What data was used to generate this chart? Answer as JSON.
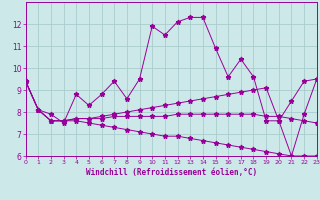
{
  "xlabel": "Windchill (Refroidissement éolien,°C)",
  "x": [
    0,
    1,
    2,
    3,
    4,
    5,
    6,
    7,
    8,
    9,
    10,
    11,
    12,
    13,
    14,
    15,
    16,
    17,
    18,
    19,
    20,
    21,
    22,
    23
  ],
  "line1": [
    9.4,
    8.1,
    7.9,
    7.5,
    8.8,
    8.3,
    8.8,
    9.4,
    8.6,
    9.5,
    11.9,
    11.5,
    12.1,
    12.3,
    12.3,
    10.9,
    9.6,
    10.4,
    9.6,
    7.6,
    7.6,
    6.0,
    7.9,
    9.5
  ],
  "line2": [
    9.4,
    8.1,
    7.6,
    7.6,
    7.7,
    7.7,
    7.8,
    7.9,
    8.0,
    8.1,
    8.2,
    8.3,
    8.4,
    8.5,
    8.6,
    8.7,
    8.8,
    8.9,
    9.0,
    9.1,
    7.6,
    8.5,
    9.4,
    9.5
  ],
  "line3": [
    9.4,
    8.1,
    7.6,
    7.6,
    7.7,
    7.7,
    7.7,
    7.8,
    7.8,
    7.8,
    7.8,
    7.8,
    7.9,
    7.9,
    7.9,
    7.9,
    7.9,
    7.9,
    7.9,
    7.8,
    7.8,
    7.7,
    7.6,
    7.5
  ],
  "line4": [
    9.4,
    8.1,
    7.6,
    7.6,
    7.6,
    7.5,
    7.4,
    7.3,
    7.2,
    7.1,
    7.0,
    6.9,
    6.9,
    6.8,
    6.7,
    6.6,
    6.5,
    6.4,
    6.3,
    6.2,
    6.1,
    6.0,
    6.0,
    6.0
  ],
  "line_color": "#990099",
  "bg_color": "#cce8e8",
  "grid_color": "#aacccc",
  "ylim": [
    6,
    13
  ],
  "xlim": [
    0,
    23
  ],
  "yticks": [
    6,
    7,
    8,
    9,
    10,
    11,
    12
  ],
  "xticks": [
    0,
    1,
    2,
    3,
    4,
    5,
    6,
    7,
    8,
    9,
    10,
    11,
    12,
    13,
    14,
    15,
    16,
    17,
    18,
    19,
    20,
    21,
    22,
    23
  ]
}
